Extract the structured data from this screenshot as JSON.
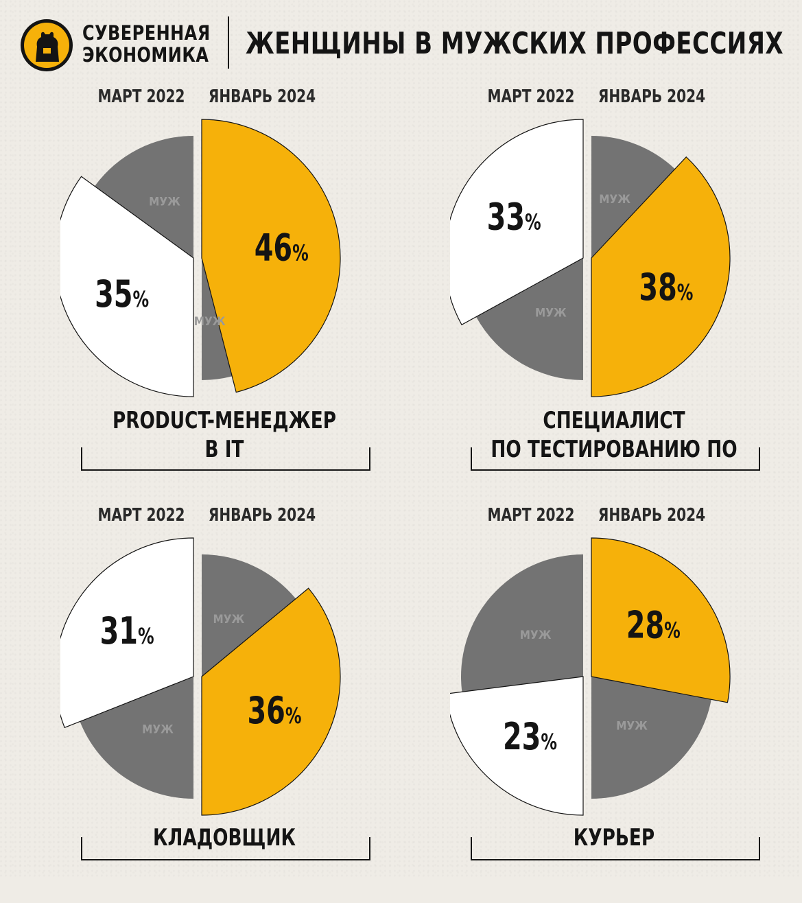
{
  "header": {
    "brand_line1": "СУВЕРЕННАЯ",
    "brand_line2": "ЭКОНОМИКА",
    "title": "ЖЕНЩИНЫ В МУЖСКИХ ПРОФЕССИЯХ",
    "logo_icon": "bear-icon"
  },
  "colors": {
    "women_march_2022": "#ffffff",
    "women_january_2024": "#f6b10a",
    "men": "#737373",
    "background": "#efece6",
    "text": "#141414"
  },
  "chart_data": [
    {
      "type": "pie",
      "title": "PRODUCT-МЕНЕДЖЕР В IT",
      "title_lines": [
        "PRODUCT-МЕНЕДЖЕР",
        "В IT"
      ],
      "halves": [
        {
          "name": "МАРТ 2022",
          "women": 35,
          "women_label": "35",
          "men_label": "МУЖ"
        },
        {
          "name": "ЯНВАРЬ 2024",
          "women": 46,
          "women_label": "46",
          "men_label": "МУЖ"
        }
      ]
    },
    {
      "type": "pie",
      "title": "СПЕЦИАЛИСТ ПО ТЕСТИРОВАНИЮ ПО",
      "title_lines": [
        "СПЕЦИАЛИСТ",
        "ПО ТЕСТИРОВАНИЮ ПО"
      ],
      "halves": [
        {
          "name": "МАРТ 2022",
          "women": 33,
          "women_label": "33",
          "men_label": "МУЖ"
        },
        {
          "name": "ЯНВАРЬ 2024",
          "women": 38,
          "women_label": "38",
          "men_label": "МУЖ"
        }
      ]
    },
    {
      "type": "pie",
      "title": "КЛАДОВЩИК",
      "title_lines": [
        "КЛАДОВЩИК"
      ],
      "halves": [
        {
          "name": "МАРТ 2022",
          "women": 31,
          "women_label": "31",
          "men_label": "МУЖ"
        },
        {
          "name": "ЯНВАРЬ 2024",
          "women": 36,
          "women_label": "36",
          "men_label": "МУЖ"
        }
      ]
    },
    {
      "type": "pie",
      "title": "КУРЬЕР",
      "title_lines": [
        "КУРЬЕР"
      ],
      "halves": [
        {
          "name": "МАРТ 2022",
          "women": 23,
          "women_label": "23",
          "men_label": "МУЖ"
        },
        {
          "name": "ЯНВАРЬ 2024",
          "women": 28,
          "women_label": "28",
          "men_label": "МУЖ"
        }
      ]
    }
  ]
}
